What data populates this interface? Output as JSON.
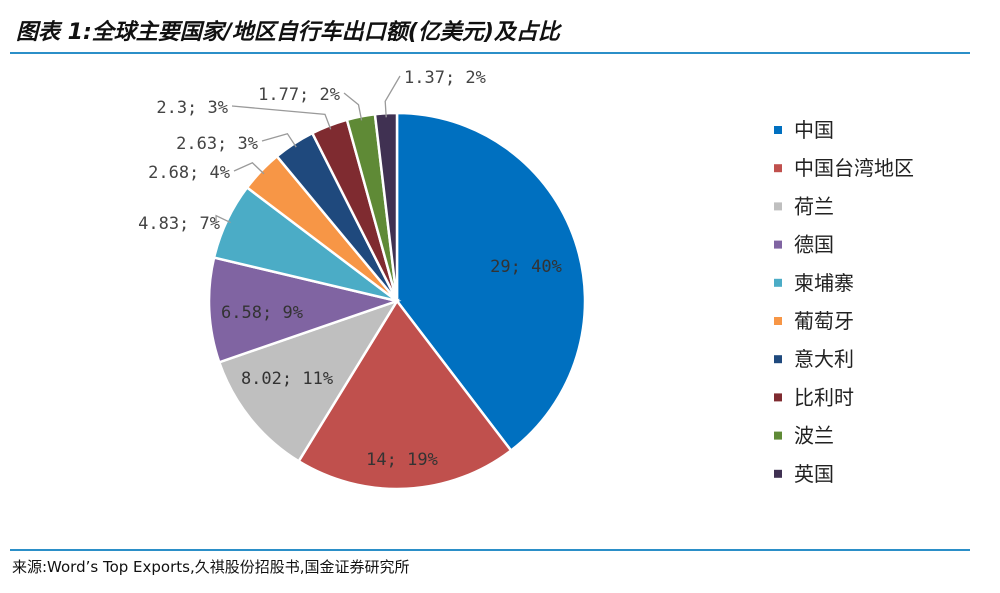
{
  "figure": {
    "title": "图表 1:全球主要国家/地区自行车出口额(亿美元)及占比",
    "source": "来源:Word’s Top Exports,久祺股份招股书,国金证券研究所"
  },
  "chart_data": {
    "type": "pie",
    "title": "图表 1:全球主要国家/地区自行车出口额(亿美元)及占比",
    "categories": [
      "中国",
      "中国台湾地区",
      "荷兰",
      "德国",
      "柬埔寨",
      "葡萄牙",
      "意大利",
      "比利时",
      "波兰",
      "英国"
    ],
    "values": [
      29,
      14,
      8.02,
      6.58,
      4.83,
      2.68,
      2.63,
      2.3,
      1.77,
      1.37
    ],
    "labels": [
      "29; 40%",
      "14; 19%",
      "8.02; 11%",
      "6.58; 9%",
      "4.83; 7%",
      "2.68; 4%",
      "2.63; 3%",
      "2.3; 3%",
      "1.77; 2%",
      "1.37; 2%"
    ],
    "colors": [
      "#0070c0",
      "#c0504d",
      "#bfbfbf",
      "#8064a2",
      "#4bacc6",
      "#f79646",
      "#1f497d",
      "#7f2b30",
      "#5f8a36",
      "#403152"
    ],
    "legend_position": "right"
  }
}
